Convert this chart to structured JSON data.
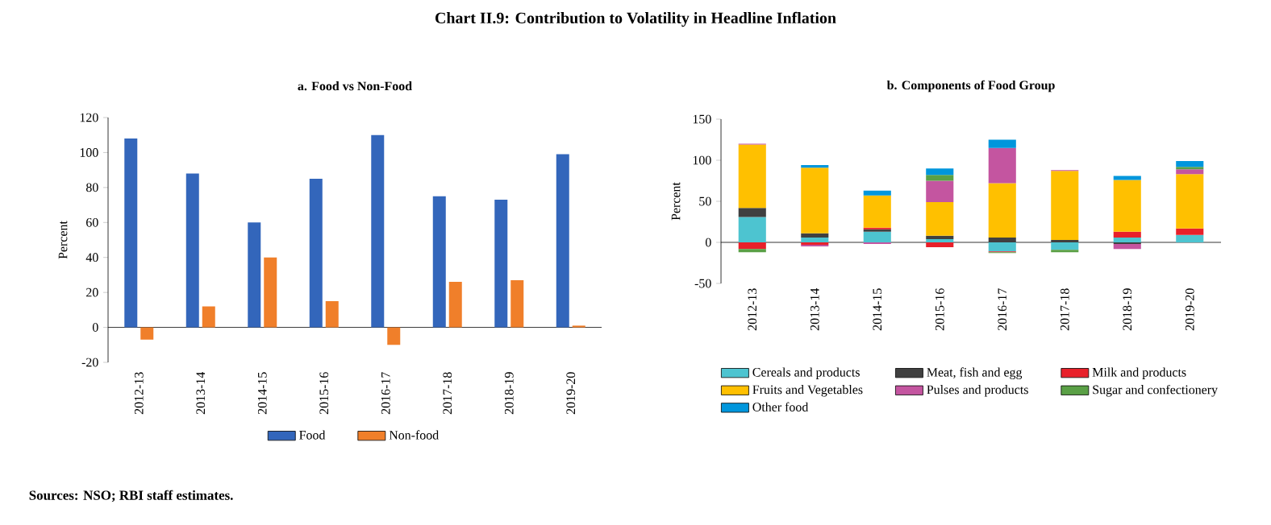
{
  "chart_data": [
    {
      "type": "other",
      "title": "Chart II.9: Contribution to Volatility in Headline Inflation",
      "annotations": [
        "Sources: NSO; RBI staff estimates."
      ]
    },
    {
      "type": "bar",
      "title": "a. Food vs Non-Food",
      "ylabel": "Percent",
      "categories": [
        "2012-13",
        "2013-14",
        "2014-15",
        "2015-16",
        "2016-17",
        "2017-18",
        "2018-19",
        "2019-20"
      ],
      "series": [
        {
          "name": "Food",
          "color": "#3366bb",
          "values": [
            108,
            88,
            60,
            85,
            110,
            75,
            73,
            99
          ]
        },
        {
          "name": "Non-food",
          "color": "#f07f2a",
          "values": [
            -7,
            12,
            40,
            15,
            -10,
            26,
            27,
            1
          ]
        }
      ],
      "ylim": [
        -20,
        120
      ],
      "yticks": [
        -20,
        0,
        20,
        40,
        60,
        80,
        100,
        120
      ],
      "legend": "bottom"
    },
    {
      "type": "bar",
      "stacked": true,
      "title": "b.  Components of Food Group",
      "ylabel": "Percent",
      "categories": [
        "2012-13",
        "2013-14",
        "2014-15",
        "2015-16",
        "2016-17",
        "2017-18",
        "2018-19",
        "2019-20"
      ],
      "series": [
        {
          "name": "Cereals and products",
          "color": "#4dc4d0",
          "values": [
            31,
            6,
            13,
            4,
            -11,
            -9,
            6,
            9
          ]
        },
        {
          "name": "Meat, fish and egg",
          "color": "#404040",
          "values": [
            11,
            5,
            3,
            4,
            6,
            3,
            -2,
            null
          ]
        },
        {
          "name": "Milk and products",
          "color": "#e8202a",
          "values": [
            -8,
            -3,
            2,
            -6,
            -1,
            null,
            7,
            8
          ]
        },
        {
          "name": "Fruits and Vegetables",
          "color": "#ffc000",
          "values": [
            77,
            80,
            39,
            41,
            66,
            84,
            63,
            66
          ]
        },
        {
          "name": "Pulses and products",
          "color": "#c455a0",
          "values": [
            1,
            -2,
            -2,
            26,
            43,
            1,
            -6,
            6
          ]
        },
        {
          "name": "Sugar and confectionery",
          "color": "#5aa046",
          "values": [
            -4,
            null,
            null,
            7,
            -1,
            -3,
            null,
            3
          ]
        },
        {
          "name": "Other food",
          "color": "#0096dc",
          "values": [
            null,
            3,
            6,
            8,
            10,
            null,
            5,
            7
          ]
        }
      ],
      "ylim": [
        -50,
        150
      ],
      "yticks": [
        -50,
        0,
        50,
        100,
        150
      ],
      "legend": "bottom"
    }
  ]
}
